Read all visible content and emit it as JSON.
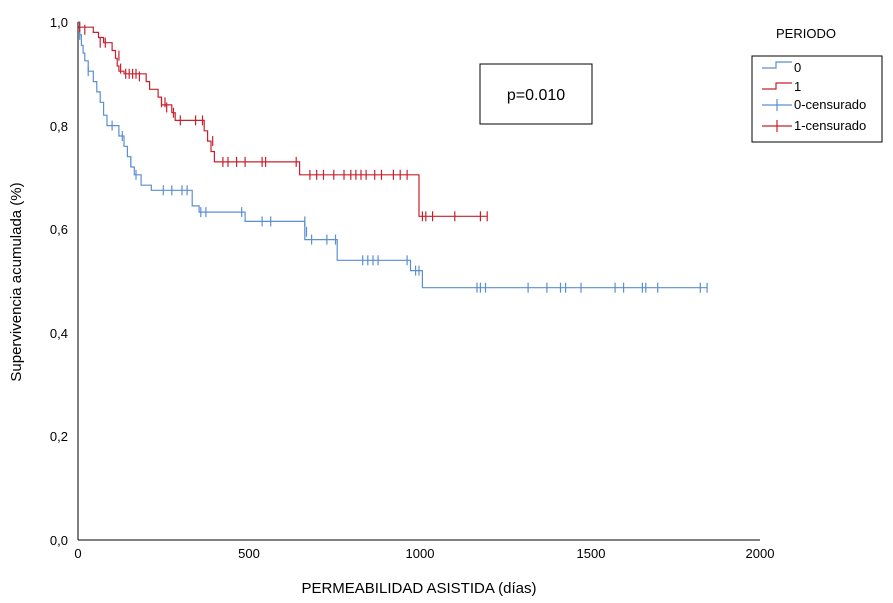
{
  "chart_data": {
    "type": "line",
    "subtype": "kaplan-meier-step",
    "xlabel": "PERMEABILIDAD ASISTIDA (días)",
    "ylabel": "Supervivencia acumulada (%)",
    "xlim": [
      0,
      2000
    ],
    "ylim": [
      0,
      1
    ],
    "x_ticks": [
      "0",
      "500",
      "1000",
      "1500",
      "2000"
    ],
    "y_ticks": [
      "0,0",
      "0,2",
      "0,4",
      "0,6",
      "0,8",
      "1,0"
    ],
    "grid": false,
    "legend": {
      "title": "PERIODO",
      "placement": "right",
      "entries": [
        "0",
        "1",
        "0-censurado",
        "1-censurado"
      ]
    },
    "annotation": "p=0.010",
    "series": [
      {
        "name": "0",
        "color": "#5b8fd1",
        "steps": [
          [
            0,
            1.0
          ],
          [
            5,
            0.975
          ],
          [
            10,
            0.955
          ],
          [
            15,
            0.94
          ],
          [
            20,
            0.925
          ],
          [
            30,
            0.905
          ],
          [
            45,
            0.885
          ],
          [
            55,
            0.865
          ],
          [
            65,
            0.845
          ],
          [
            75,
            0.82
          ],
          [
            85,
            0.8
          ],
          [
            120,
            0.78
          ],
          [
            135,
            0.76
          ],
          [
            145,
            0.74
          ],
          [
            155,
            0.72
          ],
          [
            165,
            0.705
          ],
          [
            185,
            0.685
          ],
          [
            215,
            0.675
          ],
          [
            335,
            0.645
          ],
          [
            355,
            0.633
          ],
          [
            490,
            0.615
          ],
          [
            665,
            0.58
          ],
          [
            760,
            0.54
          ],
          [
            975,
            0.52
          ],
          [
            1010,
            0.487
          ],
          [
            1845,
            0.487
          ]
        ],
        "censored": [
          [
            5,
            0.975
          ],
          [
            30,
            0.905
          ],
          [
            100,
            0.8
          ],
          [
            130,
            0.78
          ],
          [
            155,
            0.73
          ],
          [
            170,
            0.705
          ],
          [
            250,
            0.675
          ],
          [
            275,
            0.675
          ],
          [
            305,
            0.675
          ],
          [
            320,
            0.675
          ],
          [
            360,
            0.633
          ],
          [
            375,
            0.633
          ],
          [
            480,
            0.633
          ],
          [
            540,
            0.615
          ],
          [
            565,
            0.615
          ],
          [
            665,
            0.615
          ],
          [
            670,
            0.595
          ],
          [
            685,
            0.58
          ],
          [
            730,
            0.58
          ],
          [
            755,
            0.58
          ],
          [
            835,
            0.54
          ],
          [
            850,
            0.54
          ],
          [
            865,
            0.54
          ],
          [
            880,
            0.54
          ],
          [
            965,
            0.54
          ],
          [
            990,
            0.52
          ],
          [
            1000,
            0.52
          ],
          [
            1170,
            0.487
          ],
          [
            1180,
            0.487
          ],
          [
            1195,
            0.487
          ],
          [
            1320,
            0.487
          ],
          [
            1375,
            0.487
          ],
          [
            1415,
            0.487
          ],
          [
            1430,
            0.487
          ],
          [
            1475,
            0.487
          ],
          [
            1575,
            0.487
          ],
          [
            1600,
            0.487
          ],
          [
            1655,
            0.487
          ],
          [
            1665,
            0.487
          ],
          [
            1700,
            0.487
          ],
          [
            1825,
            0.487
          ],
          [
            1845,
            0.487
          ]
        ]
      },
      {
        "name": "1",
        "color": "#c8202e",
        "steps": [
          [
            0,
            0.99
          ],
          [
            45,
            0.98
          ],
          [
            60,
            0.97
          ],
          [
            75,
            0.96
          ],
          [
            100,
            0.945
          ],
          [
            110,
            0.93
          ],
          [
            115,
            0.915
          ],
          [
            120,
            0.905
          ],
          [
            135,
            0.9
          ],
          [
            200,
            0.885
          ],
          [
            210,
            0.87
          ],
          [
            235,
            0.855
          ],
          [
            245,
            0.84
          ],
          [
            275,
            0.825
          ],
          [
            285,
            0.81
          ],
          [
            370,
            0.79
          ],
          [
            380,
            0.77
          ],
          [
            390,
            0.75
          ],
          [
            400,
            0.73
          ],
          [
            650,
            0.705
          ],
          [
            1000,
            0.625
          ],
          [
            1200,
            0.625
          ]
        ],
        "censored": [
          [
            5,
            0.99
          ],
          [
            20,
            0.985
          ],
          [
            65,
            0.96
          ],
          [
            80,
            0.96
          ],
          [
            120,
            0.935
          ],
          [
            125,
            0.91
          ],
          [
            140,
            0.9
          ],
          [
            150,
            0.9
          ],
          [
            160,
            0.9
          ],
          [
            170,
            0.9
          ],
          [
            180,
            0.895
          ],
          [
            245,
            0.845
          ],
          [
            255,
            0.845
          ],
          [
            260,
            0.835
          ],
          [
            280,
            0.825
          ],
          [
            300,
            0.81
          ],
          [
            345,
            0.81
          ],
          [
            365,
            0.81
          ],
          [
            395,
            0.77
          ],
          [
            425,
            0.73
          ],
          [
            440,
            0.73
          ],
          [
            465,
            0.73
          ],
          [
            490,
            0.73
          ],
          [
            540,
            0.73
          ],
          [
            550,
            0.73
          ],
          [
            640,
            0.73
          ],
          [
            680,
            0.705
          ],
          [
            700,
            0.705
          ],
          [
            720,
            0.705
          ],
          [
            750,
            0.705
          ],
          [
            780,
            0.705
          ],
          [
            800,
            0.705
          ],
          [
            815,
            0.705
          ],
          [
            830,
            0.705
          ],
          [
            845,
            0.705
          ],
          [
            870,
            0.705
          ],
          [
            890,
            0.705
          ],
          [
            925,
            0.705
          ],
          [
            945,
            0.705
          ],
          [
            965,
            0.705
          ],
          [
            1010,
            0.625
          ],
          [
            1020,
            0.625
          ],
          [
            1040,
            0.625
          ],
          [
            1105,
            0.625
          ],
          [
            1180,
            0.625
          ],
          [
            1200,
            0.625
          ]
        ]
      }
    ]
  }
}
